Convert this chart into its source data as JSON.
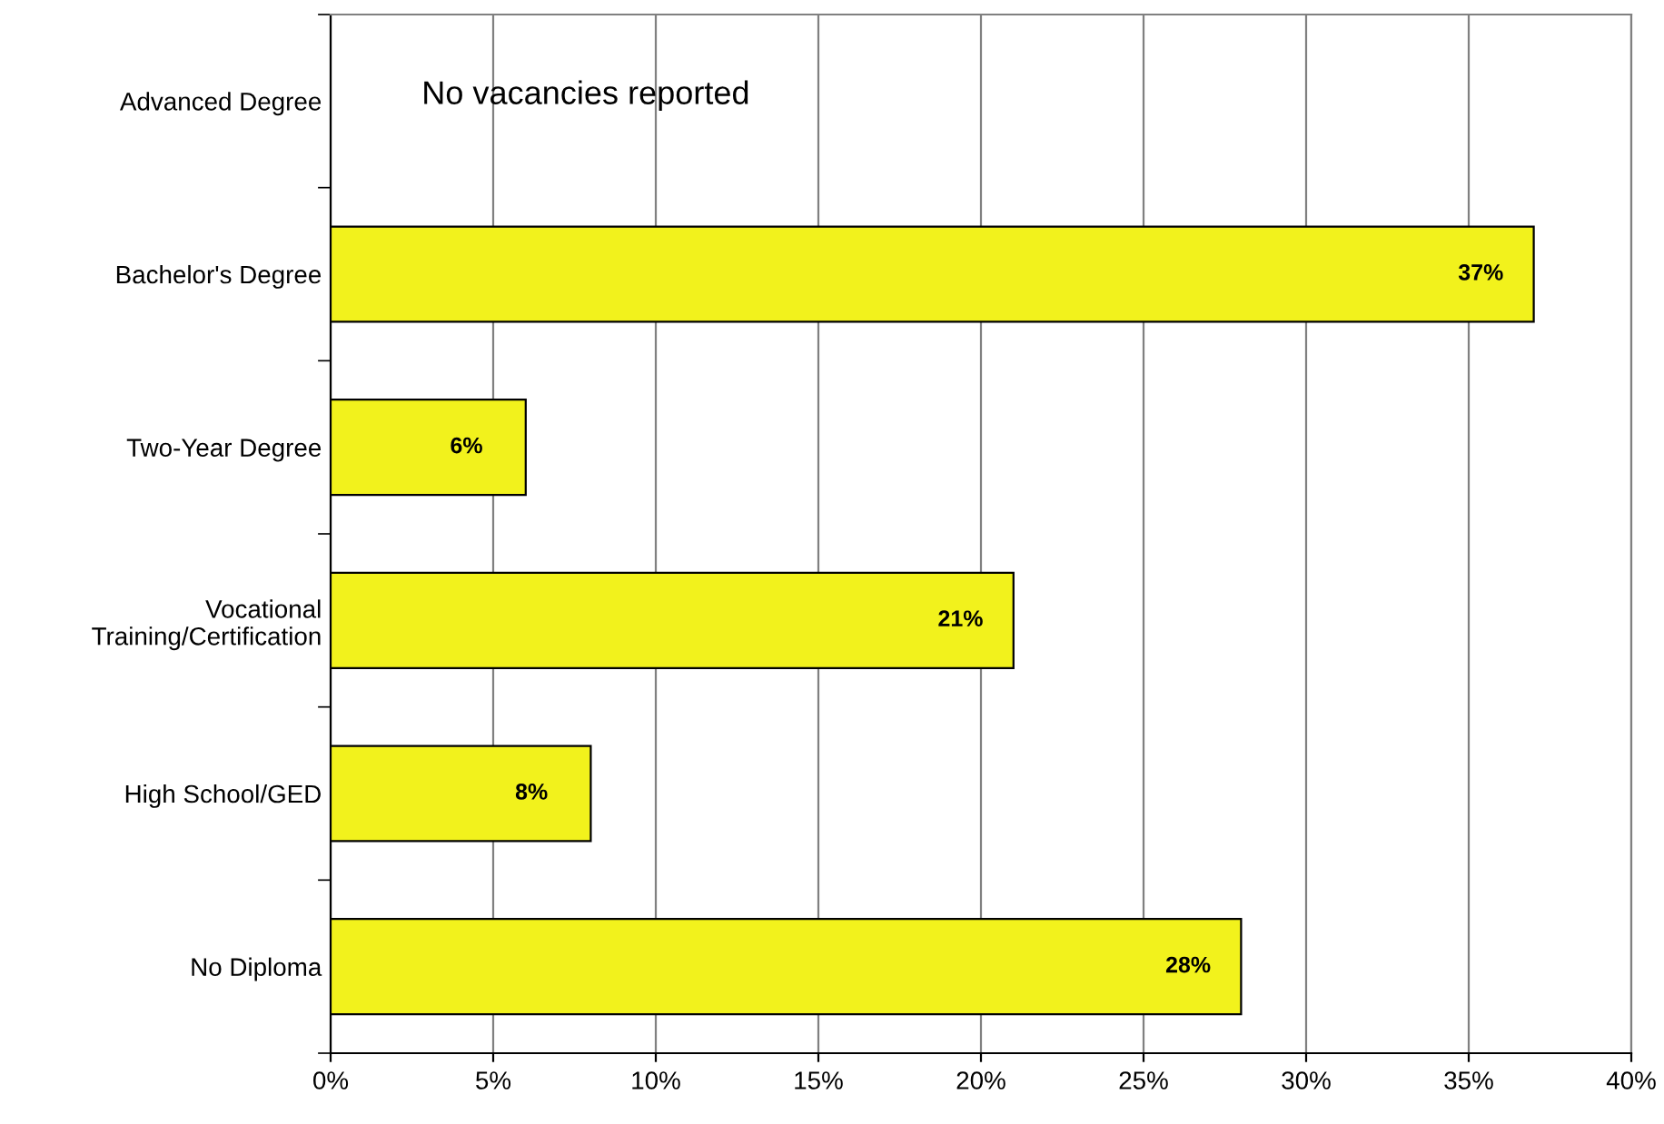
{
  "chart_data": {
    "type": "bar",
    "orientation": "horizontal",
    "categories": [
      "Advanced Degree",
      "Bachelor's Degree",
      "Two-Year Degree",
      "Vocational\nTraining/Certification",
      "High School/GED",
      "No Diploma"
    ],
    "values": [
      null,
      37,
      6,
      21,
      8,
      28
    ],
    "value_labels": [
      null,
      "37%",
      "6%",
      "21%",
      "8%",
      "28%"
    ],
    "color": "#f2f21c",
    "xlim": [
      0,
      40
    ],
    "xticks": [
      {
        "value": 0,
        "label": "0%"
      },
      {
        "value": 5,
        "label": "5%"
      },
      {
        "value": 10,
        "label": "10%"
      },
      {
        "value": 15,
        "label": "15%"
      },
      {
        "value": 20,
        "label": "20%"
      },
      {
        "value": 25,
        "label": "25%"
      },
      {
        "value": 30,
        "label": "30%"
      },
      {
        "value": 35,
        "label": "35%"
      },
      {
        "value": 40,
        "label": "40%"
      }
    ],
    "grid": "x",
    "annotations": [
      "No vacancies reported"
    ]
  }
}
